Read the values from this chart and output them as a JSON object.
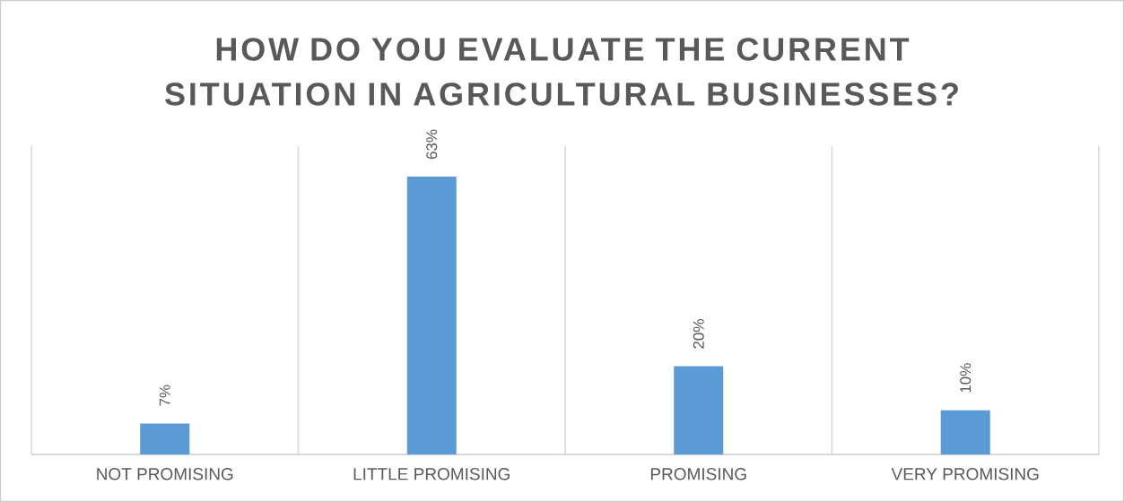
{
  "chart_data": {
    "type": "bar",
    "title": "HOW DO YOU EVALUATE THE CURRENT SITUATION IN AGRICULTURAL BUSINESSES?",
    "categories": [
      "NOT PROMISING",
      "LITTLE PROMISING",
      "PROMISING",
      "VERY PROMISING"
    ],
    "values": [
      7,
      63,
      20,
      10
    ],
    "value_labels": [
      "7%",
      "63%",
      "20%",
      "10%"
    ],
    "color": "#5b9bd5",
    "grid": "x"
  }
}
